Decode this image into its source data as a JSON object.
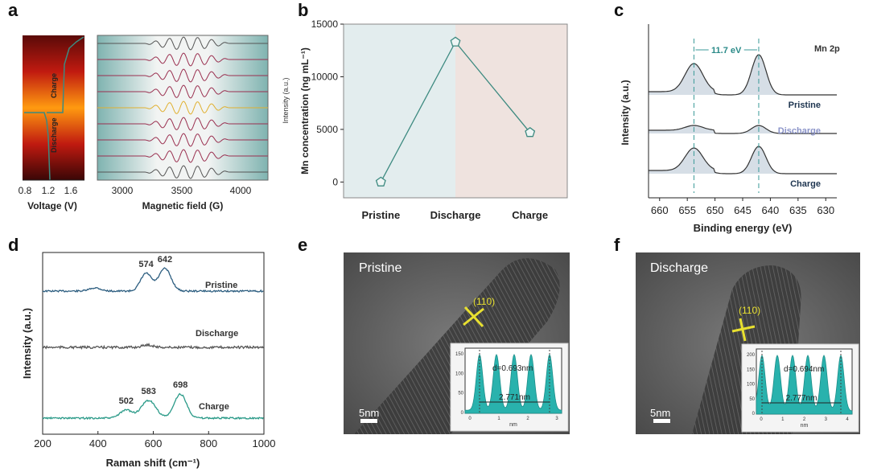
{
  "panels": {
    "a": {
      "label": "a",
      "voltage_axis": {
        "label": "Voltage (V)",
        "ticks": [
          "0.8",
          "1.2",
          "1.6"
        ]
      },
      "field_axis": {
        "label": "Magnetic field (G)",
        "ticks": [
          "3000",
          "3500",
          "4000"
        ]
      },
      "charge_text": "Charge",
      "discharge_text": "Discharge"
    },
    "b": {
      "label": "b"
    },
    "c": {
      "label": "c"
    },
    "d": {
      "label": "d"
    },
    "e": {
      "label": "e",
      "state": "Pristine",
      "scale": "5nm",
      "plane": "(110)",
      "d_spacing": "d=0.693nm",
      "distance": "2.771nm",
      "inset_yticks": [
        "150",
        "100",
        "50",
        "0"
      ],
      "inset_xticks": [
        "0",
        "1",
        "2",
        "3"
      ],
      "inset_xlabel": "nm"
    },
    "f": {
      "label": "f",
      "state": "Discharge",
      "scale": "5nm",
      "plane": "(110)",
      "d_spacing": "d=0.694nm",
      "distance": "2.777nm",
      "inset_yticks": [
        "200",
        "150",
        "100",
        "50",
        "0"
      ],
      "inset_xticks": [
        "0",
        "1",
        "2",
        "3",
        "4"
      ],
      "inset_xlabel": "nm"
    }
  },
  "chart_data": [
    {
      "type": "line",
      "panel": "b",
      "categories": [
        "Pristine",
        "Discharge",
        "Charge"
      ],
      "values": [
        0,
        13300,
        4700
      ],
      "ylabel": "Mn concentration (ng mL⁻¹)",
      "ylabel_overlay": "Intensity (a.u.)",
      "ylim": [
        -1500,
        15000
      ],
      "yticks": [
        0,
        5000,
        10000,
        15000
      ],
      "colors": {
        "line": "#3d8a80",
        "bg_left": "#e3edee",
        "bg_right": "#efe3df"
      }
    },
    {
      "type": "line",
      "panel": "c",
      "xlabel": "Binding energy (eV)",
      "ylabel": "Intensity (a.u.)",
      "xlim": [
        662,
        628
      ],
      "xticks": [
        660,
        655,
        650,
        645,
        640,
        635,
        630
      ],
      "title": "Mn 2p",
      "annotation": "11.7 eV",
      "peaks_eV": [
        653.8,
        642.1
      ],
      "series": [
        {
          "name": "Pristine",
          "color": "#1e3550"
        },
        {
          "name": "Discharge",
          "color": "#8a93c8"
        },
        {
          "name": "Charge",
          "color": "#1e3550"
        }
      ]
    },
    {
      "type": "line",
      "panel": "d",
      "xlabel": "Raman shift (cm⁻¹)",
      "ylabel": "Intensity (a.u.)",
      "xlim": [
        200,
        1000
      ],
      "xticks": [
        200,
        400,
        600,
        800,
        1000
      ],
      "series": [
        {
          "name": "Pristine",
          "color": "#2d5e80",
          "peaks": [
            "574",
            "642"
          ]
        },
        {
          "name": "Discharge",
          "color": "#555555",
          "peaks": []
        },
        {
          "name": "Charge",
          "color": "#2a9a88",
          "peaks": [
            "502",
            "583",
            "698"
          ]
        }
      ]
    }
  ]
}
